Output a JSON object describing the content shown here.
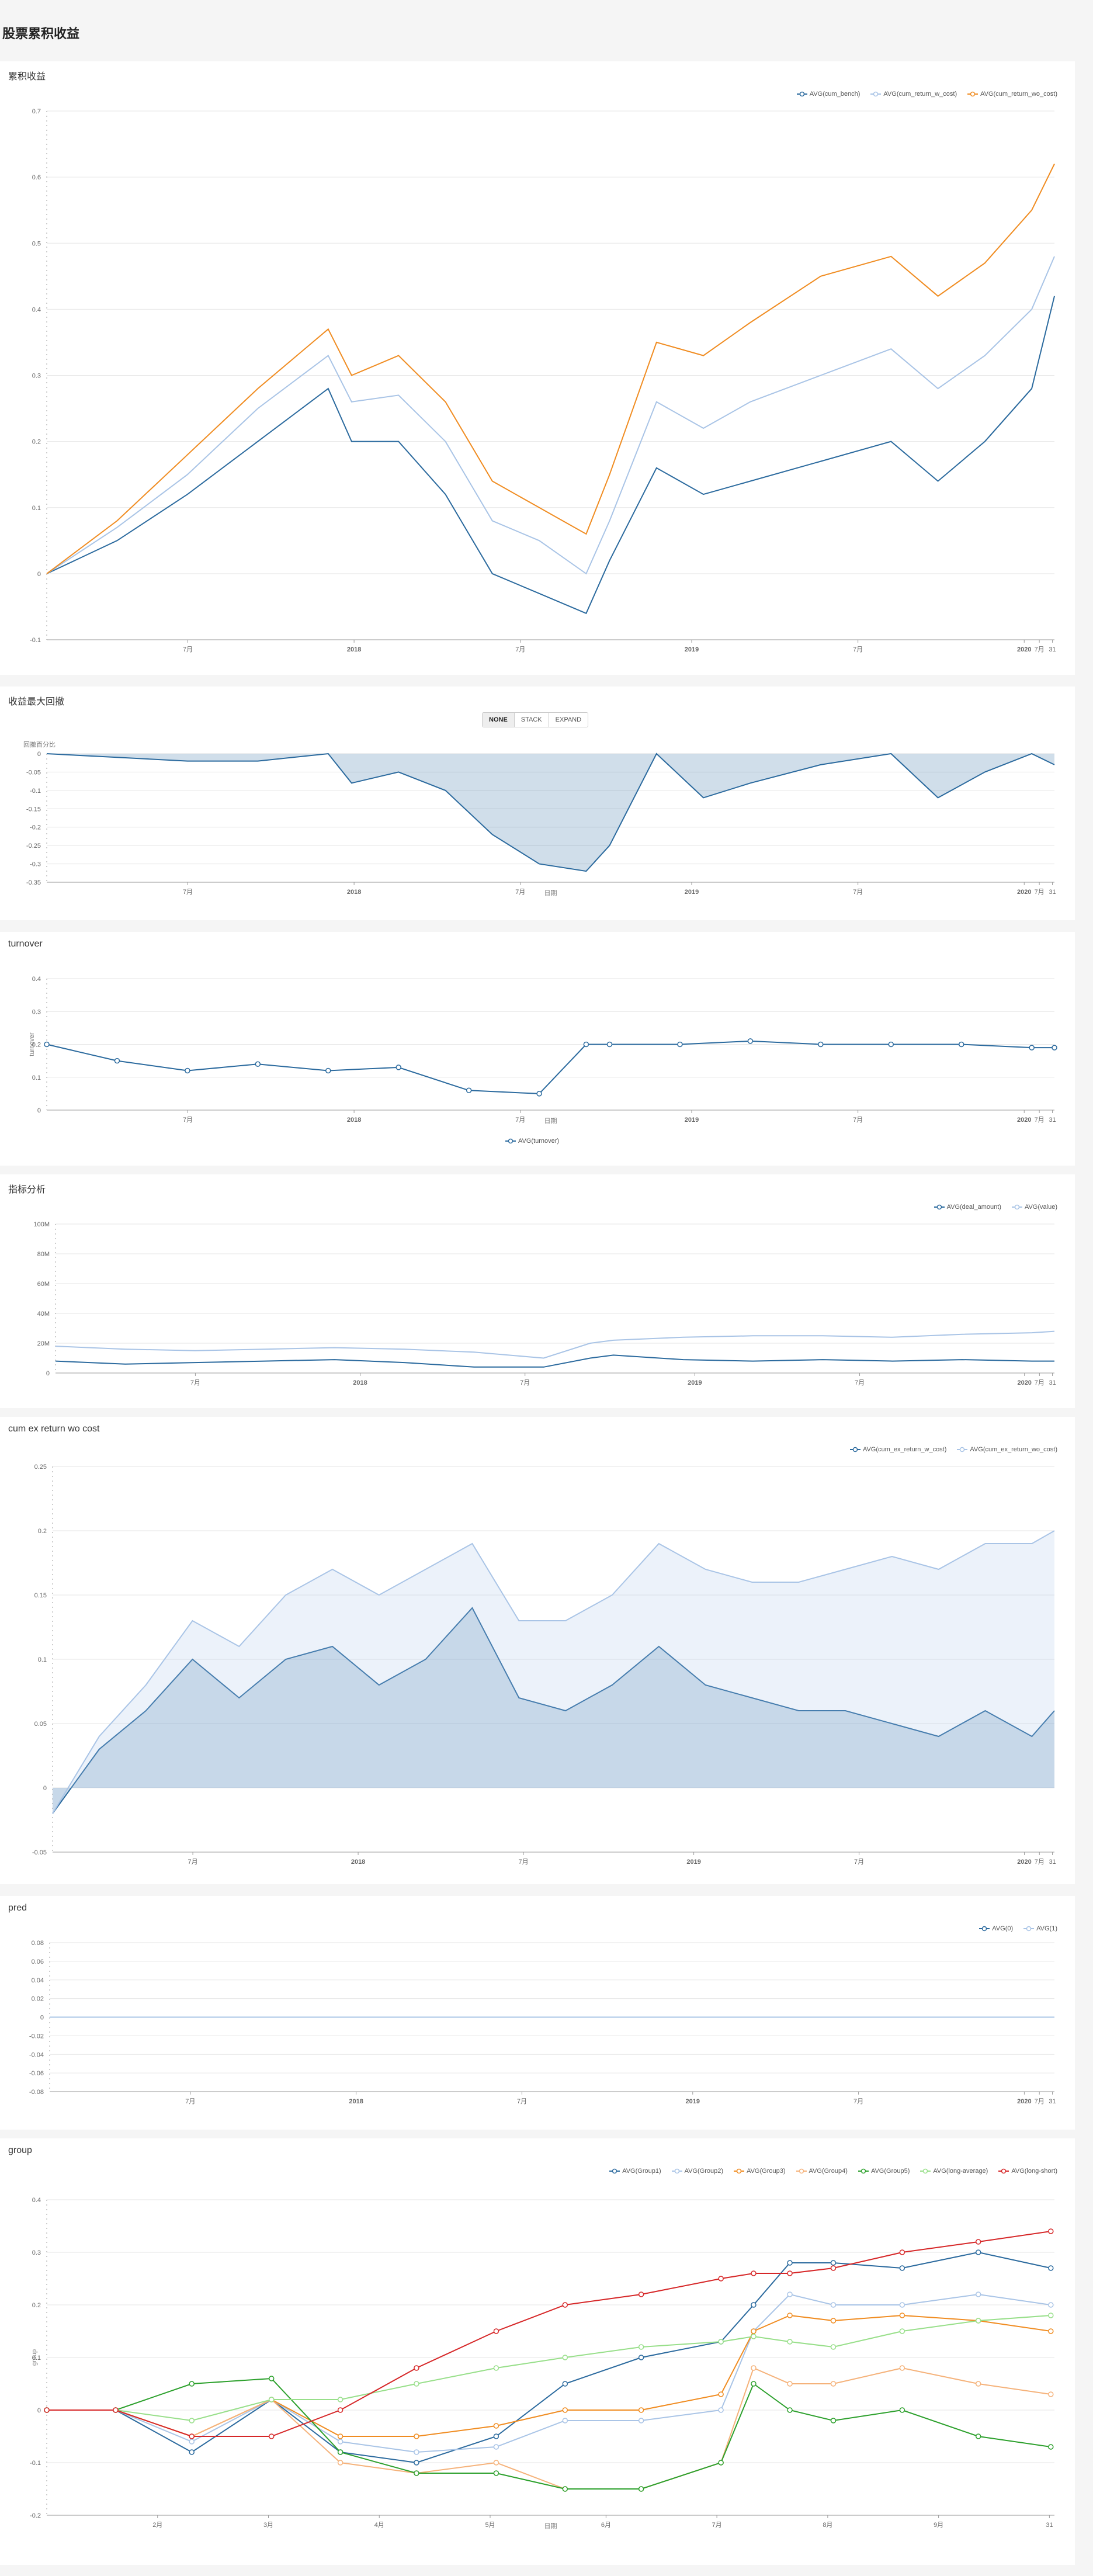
{
  "page": {
    "title": "股票累积收益"
  },
  "chart_data": [
    {
      "id": "cum",
      "type": "line",
      "title": "累积收益",
      "ylim": [
        -0.1,
        0.7
      ],
      "yticks": [
        "-0.1",
        "0",
        "0.1",
        "0.2",
        "0.3",
        "0.4",
        "0.5",
        "0.6",
        "0.7"
      ],
      "xticks": [
        "7月",
        "2018",
        "7月",
        "2019",
        "7月",
        "2020",
        "7月",
        "31"
      ],
      "legend_position": "top-right",
      "series": [
        {
          "name": "AVG(cum_bench)",
          "color": "#2b6a9e",
          "x": [
            "2017-01",
            "2017-04",
            "2017-07",
            "2017-10",
            "2018-01",
            "2018-02",
            "2018-04",
            "2018-06",
            "2018-08",
            "2018-10",
            "2018-12",
            "2019-01",
            "2019-03",
            "2019-05",
            "2019-07",
            "2019-10",
            "2020-01",
            "2020-03",
            "2020-05",
            "2020-07",
            "2020-07-31"
          ],
          "y": [
            0.0,
            0.05,
            0.12,
            0.2,
            0.28,
            0.2,
            0.2,
            0.12,
            0.0,
            -0.03,
            -0.06,
            0.02,
            0.16,
            0.12,
            0.14,
            0.17,
            0.2,
            0.14,
            0.2,
            0.28,
            0.42
          ]
        },
        {
          "name": "AVG(cum_return_w_cost)",
          "color": "#a9c4e6",
          "x": [
            "2017-01",
            "2017-04",
            "2017-07",
            "2017-10",
            "2018-01",
            "2018-02",
            "2018-04",
            "2018-06",
            "2018-08",
            "2018-10",
            "2018-12",
            "2019-01",
            "2019-03",
            "2019-05",
            "2019-07",
            "2019-10",
            "2020-01",
            "2020-03",
            "2020-05",
            "2020-07",
            "2020-07-31"
          ],
          "y": [
            0.0,
            0.07,
            0.15,
            0.25,
            0.33,
            0.26,
            0.27,
            0.2,
            0.08,
            0.05,
            0.0,
            0.08,
            0.26,
            0.22,
            0.26,
            0.3,
            0.34,
            0.28,
            0.33,
            0.4,
            0.48
          ]
        },
        {
          "name": "AVG(cum_return_wo_cost)",
          "color": "#f08c21",
          "x": [
            "2017-01",
            "2017-04",
            "2017-07",
            "2017-10",
            "2018-01",
            "2018-02",
            "2018-04",
            "2018-06",
            "2018-08",
            "2018-10",
            "2018-12",
            "2019-01",
            "2019-03",
            "2019-05",
            "2019-07",
            "2019-10",
            "2020-01",
            "2020-03",
            "2020-05",
            "2020-07",
            "2020-07-31"
          ],
          "y": [
            0.0,
            0.08,
            0.18,
            0.28,
            0.37,
            0.3,
            0.33,
            0.26,
            0.14,
            0.1,
            0.06,
            0.15,
            0.35,
            0.33,
            0.38,
            0.45,
            0.48,
            0.42,
            0.47,
            0.55,
            0.62
          ]
        }
      ]
    },
    {
      "id": "drawdown",
      "type": "area",
      "title": "收益最大回撤",
      "ylabel": "回撤百分比",
      "xlabel": "日期",
      "ylim": [
        -0.35,
        0
      ],
      "yticks": [
        "-0.35",
        "-0.3",
        "-0.25",
        "-0.2",
        "-0.15",
        "-0.1",
        "-0.05",
        "0"
      ],
      "xticks": [
        "7月",
        "2018",
        "7月",
        "2019",
        "7月",
        "2020",
        "7月",
        "31"
      ],
      "buttons": [
        "NONE",
        "STACK",
        "EXPAND"
      ],
      "active_button": "NONE",
      "series": [
        {
          "name": "drawdown",
          "color": "#2b6a9e",
          "x": [
            "2017-01",
            "2017-04",
            "2017-07",
            "2017-10",
            "2018-01",
            "2018-02",
            "2018-04",
            "2018-06",
            "2018-08",
            "2018-10",
            "2018-12",
            "2019-01",
            "2019-03",
            "2019-05",
            "2019-07",
            "2019-10",
            "2020-01",
            "2020-03",
            "2020-05",
            "2020-07",
            "2020-07-31"
          ],
          "y": [
            0.0,
            -0.01,
            -0.02,
            -0.02,
            0.0,
            -0.08,
            -0.05,
            -0.1,
            -0.22,
            -0.3,
            -0.32,
            -0.25,
            0.0,
            -0.12,
            -0.08,
            -0.03,
            0.0,
            -0.12,
            -0.05,
            0.0,
            -0.03
          ]
        }
      ]
    },
    {
      "id": "turnover",
      "type": "line",
      "title": "turnover",
      "ylabel": "turnover",
      "xlabel": "日期",
      "ylim": [
        0,
        0.4
      ],
      "yticks": [
        "0",
        "0.1",
        "0.2",
        "0.3",
        "0.4"
      ],
      "xticks": [
        "7月",
        "2018",
        "7月",
        "2019",
        "7月",
        "2020",
        "7月",
        "31"
      ],
      "legend_position": "bottom",
      "series": [
        {
          "name": "AVG(turnover)",
          "color": "#2b6a9e",
          "x": [
            "2017-01",
            "2017-04",
            "2017-07",
            "2017-10",
            "2018-01",
            "2018-04",
            "2018-07",
            "2018-10",
            "2018-12",
            "2019-01",
            "2019-04",
            "2019-07",
            "2019-10",
            "2020-01",
            "2020-04",
            "2020-07",
            "2020-07-31"
          ],
          "y": [
            0.2,
            0.15,
            0.12,
            0.14,
            0.12,
            0.13,
            0.06,
            0.05,
            0.2,
            0.2,
            0.2,
            0.21,
            0.2,
            0.2,
            0.2,
            0.19,
            0.19
          ]
        }
      ]
    },
    {
      "id": "indicator",
      "type": "line",
      "title": "指标分析",
      "ylim": [
        0,
        100
      ],
      "yticks": [
        "0",
        "20M",
        "40M",
        "60M",
        "80M",
        "100M"
      ],
      "xticks": [
        "7月",
        "2018",
        "7月",
        "2019",
        "7月",
        "2020",
        "7月",
        "31"
      ],
      "legend_position": "top-right",
      "series": [
        {
          "name": "AVG(deal_amount)",
          "color": "#2b6a9e",
          "x": [
            "2017-01",
            "2017-04",
            "2017-07",
            "2017-10",
            "2018-01",
            "2018-04",
            "2018-07",
            "2018-10",
            "2018-12",
            "2019-01",
            "2019-04",
            "2019-07",
            "2019-10",
            "2020-01",
            "2020-04",
            "2020-07",
            "2020-07-31"
          ],
          "y": [
            8,
            6,
            7,
            8,
            9,
            7,
            4,
            4,
            10,
            12,
            9,
            8,
            9,
            8,
            9,
            8,
            8
          ]
        },
        {
          "name": "AVG(value)",
          "color": "#a9c4e6",
          "x": [
            "2017-01",
            "2017-04",
            "2017-07",
            "2017-10",
            "2018-01",
            "2018-04",
            "2018-07",
            "2018-10",
            "2018-12",
            "2019-01",
            "2019-04",
            "2019-07",
            "2019-10",
            "2020-01",
            "2020-04",
            "2020-07",
            "2020-07-31"
          ],
          "y": [
            18,
            16,
            15,
            16,
            17,
            16,
            14,
            10,
            20,
            22,
            24,
            25,
            25,
            24,
            26,
            27,
            28
          ]
        }
      ]
    },
    {
      "id": "excess",
      "type": "area",
      "title": "cum ex return wo cost",
      "ylim": [
        -0.05,
        0.25
      ],
      "yticks": [
        "-0.05",
        "0",
        "0.05",
        "0.1",
        "0.15",
        "0.2",
        "0.25"
      ],
      "xticks": [
        "7月",
        "2018",
        "7月",
        "2019",
        "7月",
        "2020",
        "7月",
        "31"
      ],
      "legend_position": "top-right",
      "series": [
        {
          "name": "AVG(cum_ex_return_w_cost)",
          "color": "#2b6a9e",
          "x": [
            "2017-01",
            "2017-03",
            "2017-05",
            "2017-07",
            "2017-09",
            "2017-11",
            "2018-01",
            "2018-03",
            "2018-05",
            "2018-07",
            "2018-09",
            "2018-11",
            "2019-01",
            "2019-03",
            "2019-05",
            "2019-07",
            "2019-09",
            "2019-11",
            "2020-01",
            "2020-03",
            "2020-05",
            "2020-07",
            "2020-07-31"
          ],
          "y": [
            -0.02,
            0.03,
            0.06,
            0.1,
            0.07,
            0.1,
            0.11,
            0.08,
            0.1,
            0.14,
            0.07,
            0.06,
            0.08,
            0.11,
            0.08,
            0.07,
            0.06,
            0.06,
            0.05,
            0.04,
            0.06,
            0.04,
            0.06
          ]
        },
        {
          "name": "AVG(cum_ex_return_wo_cost)",
          "color": "#a9c4e6",
          "x": [
            "2017-01",
            "2017-03",
            "2017-05",
            "2017-07",
            "2017-09",
            "2017-11",
            "2018-01",
            "2018-03",
            "2018-05",
            "2018-07",
            "2018-09",
            "2018-11",
            "2019-01",
            "2019-03",
            "2019-05",
            "2019-07",
            "2019-09",
            "2019-11",
            "2020-01",
            "2020-03",
            "2020-05",
            "2020-07",
            "2020-07-31"
          ],
          "y": [
            -0.02,
            0.04,
            0.08,
            0.13,
            0.11,
            0.15,
            0.17,
            0.15,
            0.17,
            0.19,
            0.13,
            0.13,
            0.15,
            0.19,
            0.17,
            0.16,
            0.16,
            0.17,
            0.18,
            0.17,
            0.19,
            0.19,
            0.2
          ]
        }
      ]
    },
    {
      "id": "pred",
      "type": "line",
      "title": "pred",
      "ylim": [
        -0.08,
        0.08
      ],
      "yticks": [
        "-0.08",
        "-0.06",
        "-0.04",
        "-0.02",
        "0",
        "0.02",
        "0.04",
        "0.06",
        "0.08"
      ],
      "xticks": [
        "7月",
        "2018",
        "7月",
        "2019",
        "7月",
        "2020",
        "7月",
        "31"
      ],
      "legend_position": "top-right",
      "series": [
        {
          "name": "AVG(0)",
          "color": "#2b6a9e",
          "x": [
            "2017-01",
            "2017-07",
            "2018-01",
            "2018-07",
            "2019-01",
            "2019-07",
            "2020-01",
            "2020-07",
            "2020-07-31"
          ],
          "y": [
            0.0,
            0.0,
            0.0,
            0.0,
            0.0,
            0.0,
            0.0,
            0.0,
            0.0
          ]
        },
        {
          "name": "AVG(1)",
          "color": "#a9c4e6",
          "x": [
            "2017-01",
            "2017-07",
            "2018-01",
            "2018-07",
            "2019-01",
            "2019-07",
            "2020-01",
            "2020-07",
            "2020-07-31"
          ],
          "y": [
            0.0,
            0.0,
            0.0,
            0.0,
            0.0,
            0.0,
            0.0,
            0.0,
            0.0
          ]
        }
      ]
    },
    {
      "id": "group",
      "type": "line",
      "title": "group",
      "ylabel": "group",
      "xlabel": "日期",
      "ylim": [
        -0.2,
        0.4
      ],
      "yticks": [
        "-0.2",
        "-0.1",
        "0",
        "0.1",
        "0.2",
        "0.3",
        "0.4"
      ],
      "xticks": [
        "2月",
        "3月",
        "4月",
        "5月",
        "6月",
        "7月",
        "8月",
        "9月",
        "31"
      ],
      "legend_position": "top-right",
      "series": [
        {
          "name": "AVG(Group1)",
          "color": "#2b6a9e",
          "x": [
            "01-01",
            "01-20",
            "02-10",
            "03-01",
            "03-20",
            "04-10",
            "05-01",
            "05-20",
            "06-10",
            "07-01",
            "07-10",
            "07-20",
            "08-01",
            "08-20",
            "09-10",
            "09-30"
          ],
          "y": [
            0.0,
            0.0,
            -0.08,
            0.02,
            -0.08,
            -0.1,
            -0.05,
            0.05,
            0.1,
            0.13,
            0.2,
            0.28,
            0.28,
            0.27,
            0.3,
            0.27
          ]
        },
        {
          "name": "AVG(Group2)",
          "color": "#a9c4e6",
          "x": [
            "01-01",
            "01-20",
            "02-10",
            "03-01",
            "03-20",
            "04-10",
            "05-01",
            "05-20",
            "06-10",
            "07-01",
            "07-10",
            "07-20",
            "08-01",
            "08-20",
            "09-10",
            "09-30"
          ],
          "y": [
            0.0,
            0.0,
            -0.06,
            0.02,
            -0.06,
            -0.08,
            -0.07,
            -0.02,
            -0.02,
            0.0,
            0.15,
            0.22,
            0.2,
            0.2,
            0.22,
            0.2
          ]
        },
        {
          "name": "AVG(Group3)",
          "color": "#f08c21",
          "x": [
            "01-01",
            "01-20",
            "02-10",
            "03-01",
            "03-20",
            "04-10",
            "05-01",
            "05-20",
            "06-10",
            "07-01",
            "07-10",
            "07-20",
            "08-01",
            "08-20",
            "09-10",
            "09-30"
          ],
          "y": [
            0.0,
            0.0,
            -0.05,
            0.02,
            -0.05,
            -0.05,
            -0.03,
            0.0,
            0.0,
            0.03,
            0.15,
            0.18,
            0.17,
            0.18,
            0.17,
            0.15
          ]
        },
        {
          "name": "AVG(Group4)",
          "color": "#f5b27a",
          "x": [
            "01-01",
            "01-20",
            "02-10",
            "03-01",
            "03-20",
            "04-10",
            "05-01",
            "05-20",
            "06-10",
            "07-01",
            "07-10",
            "07-20",
            "08-01",
            "08-20",
            "09-10",
            "09-30"
          ],
          "y": [
            0.0,
            0.0,
            -0.05,
            0.02,
            -0.1,
            -0.12,
            -0.1,
            -0.15,
            -0.15,
            -0.1,
            0.08,
            0.05,
            0.05,
            0.08,
            0.05,
            0.03
          ]
        },
        {
          "name": "AVG(Group5)",
          "color": "#2ca02c",
          "x": [
            "01-01",
            "01-20",
            "02-10",
            "03-01",
            "03-20",
            "04-10",
            "05-01",
            "05-20",
            "06-10",
            "07-01",
            "07-10",
            "07-20",
            "08-01",
            "08-20",
            "09-10",
            "09-30"
          ],
          "y": [
            0.0,
            0.0,
            0.05,
            0.06,
            -0.08,
            -0.12,
            -0.12,
            -0.15,
            -0.15,
            -0.1,
            0.05,
            0.0,
            -0.02,
            0.0,
            -0.05,
            -0.07
          ]
        },
        {
          "name": "AVG(long-average)",
          "color": "#98df8a",
          "x": [
            "01-01",
            "01-20",
            "02-10",
            "03-01",
            "03-20",
            "04-10",
            "05-01",
            "05-20",
            "06-10",
            "07-01",
            "07-10",
            "07-20",
            "08-01",
            "08-20",
            "09-10",
            "09-30"
          ],
          "y": [
            0.0,
            0.0,
            -0.02,
            0.02,
            0.02,
            0.05,
            0.08,
            0.1,
            0.12,
            0.13,
            0.14,
            0.13,
            0.12,
            0.15,
            0.17,
            0.18
          ]
        },
        {
          "name": "AVG(long-short)",
          "color": "#d62728",
          "x": [
            "01-01",
            "01-20",
            "02-10",
            "03-01",
            "03-20",
            "04-10",
            "05-01",
            "05-20",
            "06-10",
            "07-01",
            "07-10",
            "07-20",
            "08-01",
            "08-20",
            "09-10",
            "09-30"
          ],
          "y": [
            0.0,
            0.0,
            -0.05,
            -0.05,
            0.0,
            0.08,
            0.15,
            0.2,
            0.22,
            0.25,
            0.26,
            0.26,
            0.27,
            0.3,
            0.32,
            0.34
          ]
        }
      ]
    }
  ]
}
